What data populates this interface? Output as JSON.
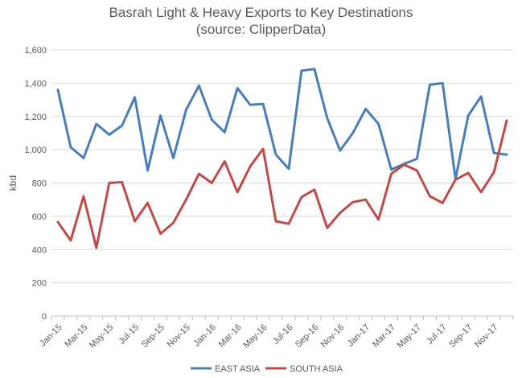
{
  "chart_data": {
    "type": "line",
    "title": "Basrah Light & Heavy Exports to Key Destinations",
    "subtitle": "(source: ClipperData)",
    "xlabel": "",
    "ylabel": "kbd",
    "ylim": [
      0,
      1600
    ],
    "yticks": [
      0,
      200,
      400,
      600,
      800,
      1000,
      1200,
      1400,
      1600
    ],
    "ytick_labels": [
      "0",
      "200",
      "400",
      "600",
      "800",
      "1,000",
      "1,200",
      "1,400",
      "1,600"
    ],
    "grid": "horizontal",
    "legend_position": "bottom",
    "x": [
      "Jan-15",
      "Feb-15",
      "Mar-15",
      "Apr-15",
      "May-15",
      "Jun-15",
      "Jul-15",
      "Aug-15",
      "Sep-15",
      "Oct-15",
      "Nov-15",
      "Dec-15",
      "Jan-16",
      "Feb-16",
      "Mar-16",
      "Apr-16",
      "May-16",
      "Jun-16",
      "Jul-16",
      "Aug-16",
      "Sep-16",
      "Oct-16",
      "Nov-16",
      "Dec-16",
      "Jan-17",
      "Feb-17",
      "Mar-17",
      "Apr-17",
      "May-17",
      "Jun-17",
      "Jul-17",
      "Aug-17",
      "Sep-17",
      "Oct-17",
      "Nov-17",
      "Dec-17"
    ],
    "x_tick_labels": [
      "Jan-15",
      "Mar-15",
      "May-15",
      "Jul-15",
      "Sep-15",
      "Nov-15",
      "Jan-16",
      "Mar-16",
      "May-16",
      "Jul-16",
      "Sep-16",
      "Nov-16",
      "Jan-17",
      "Mar-17",
      "May-17",
      "Jul-17",
      "Sep-17",
      "Nov-17"
    ],
    "series": [
      {
        "name": "EAST ASIA",
        "color": "#4a7ebb",
        "values": [
          1360,
          1015,
          950,
          1155,
          1090,
          1145,
          1315,
          875,
          1205,
          950,
          1240,
          1385,
          1180,
          1105,
          1370,
          1270,
          1275,
          970,
          885,
          1475,
          1485,
          1190,
          995,
          1100,
          1245,
          1155,
          880,
          915,
          945,
          1390,
          1400,
          825,
          1205,
          1320,
          980,
          970
        ]
      },
      {
        "name": "SOUTH ASIA",
        "color": "#be4b48",
        "values": [
          565,
          455,
          720,
          410,
          800,
          805,
          570,
          680,
          495,
          560,
          700,
          855,
          800,
          930,
          745,
          900,
          1005,
          570,
          555,
          715,
          760,
          530,
          620,
          685,
          700,
          580,
          855,
          910,
          875,
          720,
          680,
          820,
          860,
          745,
          865,
          1175
        ]
      }
    ]
  }
}
